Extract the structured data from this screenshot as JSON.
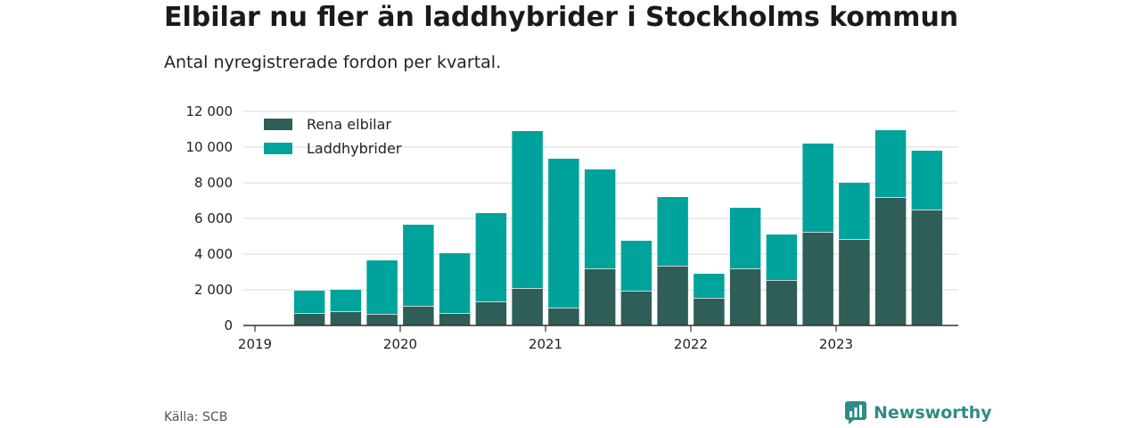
{
  "header": {
    "title": "Elbilar nu fler än laddhybrider i Stockholms kommun",
    "subtitle": "Antal nyregistrerade fordon per kvartal."
  },
  "footer": {
    "source": "Källa: SCB",
    "brand": "Newsworthy"
  },
  "colors": {
    "rena_elbilar": "#2f5d58",
    "laddhybrider": "#00a39b",
    "grid": "#d9d9d9",
    "axis": "#333333",
    "brand": "#2e8c86"
  },
  "chart_data": {
    "type": "bar",
    "stacked": true,
    "categories": [
      "2019 Q2",
      "2019 Q3",
      "2019 Q4",
      "2020 Q1",
      "2020 Q2",
      "2020 Q3",
      "2020 Q4",
      "2021 Q1",
      "2021 Q2",
      "2021 Q3",
      "2021 Q4",
      "2022 Q1",
      "2022 Q2",
      "2022 Q3",
      "2022 Q4",
      "2023 Q1",
      "2023 Q2",
      "2023 Q3"
    ],
    "series": [
      {
        "name": "Rena elbilar",
        "values": [
          700,
          800,
          650,
          1100,
          700,
          1350,
          2100,
          1000,
          3200,
          1950,
          3350,
          1550,
          3200,
          2550,
          5250,
          4850,
          7200,
          6500
        ]
      },
      {
        "name": "Laddhybrider",
        "values": [
          1250,
          1200,
          3000,
          4550,
          3350,
          4950,
          8800,
          8350,
          5550,
          2800,
          3850,
          1350,
          3400,
          2550,
          4950,
          3150,
          3750,
          3300
        ]
      }
    ],
    "xticks": [
      "2019",
      "2020",
      "2021",
      "2022",
      "2023"
    ],
    "yticks": [
      "0",
      "2 000",
      "4 000",
      "6 000",
      "8 000",
      "10 000",
      "12 000"
    ],
    "ylim": [
      0,
      12000
    ],
    "grid": true,
    "legend_position": "top-left"
  }
}
